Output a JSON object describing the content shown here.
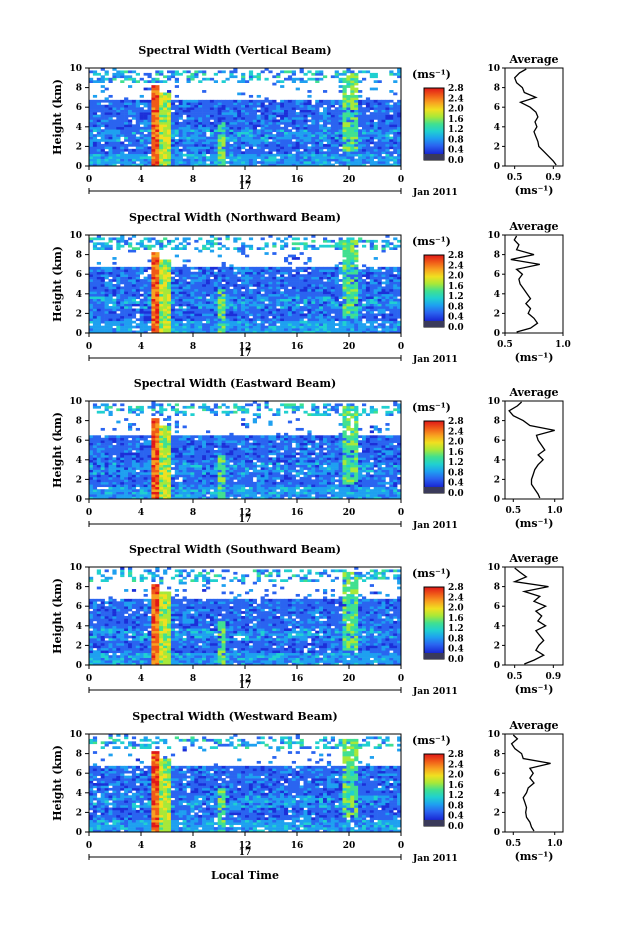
{
  "figure": {
    "time_xlabel": "Local Time",
    "date_label": "Jan 2011",
    "day_label": "17",
    "height_ylabel": "Height (km)",
    "avg_title": "Average",
    "avg_xlabel": "(ms⁻¹)",
    "cbar_unit": "(ms⁻¹)",
    "cbar_ticks": [
      "0.0",
      "0.4",
      "0.8",
      "1.2",
      "1.6",
      "2.0",
      "2.4",
      "2.8"
    ],
    "cbar_colors": [
      "#0a0a70",
      "#1c2fd8",
      "#2a64f0",
      "#1ea0f0",
      "#20d0d0",
      "#40e090",
      "#a8e838",
      "#f0e020",
      "#f8a020",
      "#f05a18",
      "#e01818"
    ]
  },
  "chart_data": [
    {
      "type": "heatmap",
      "title": "Spectral Width (Vertical Beam)",
      "xlabel": "Local Time",
      "ylabel": "Height (km)",
      "xlim": [
        0,
        24
      ],
      "ylim": [
        0,
        10
      ],
      "xticks": [
        "0",
        "4",
        "8",
        "12",
        "16",
        "20",
        "0"
      ],
      "yticks": [
        "0",
        "2",
        "4",
        "6",
        "8",
        "10"
      ],
      "colorbar": {
        "label": "(ms⁻¹)",
        "range": [
          0.0,
          2.8
        ]
      },
      "features": {
        "convective_band_hours": [
          4.8,
          5.5
        ],
        "cloud_top_km": 6.7,
        "upper_layer_km": [
          8.5,
          9.8
        ]
      },
      "average_profile": {
        "title": "Average",
        "xlabel": "(ms⁻¹)",
        "xticks": [
          "0.5",
          "0.9"
        ],
        "xlim": [
          0.4,
          1.0
        ],
        "height": [
          0.1,
          0.5,
          1,
          1.5,
          2,
          2.5,
          3,
          3.5,
          4,
          4.5,
          5,
          5.5,
          6,
          6.5,
          7,
          7.5,
          8,
          8.5,
          9,
          9.5,
          9.9
        ],
        "value": [
          0.93,
          0.9,
          0.85,
          0.8,
          0.75,
          0.74,
          0.72,
          0.7,
          0.73,
          0.71,
          0.74,
          0.72,
          0.66,
          0.56,
          0.72,
          0.6,
          0.58,
          0.52,
          0.5,
          0.55,
          0.62
        ]
      }
    },
    {
      "type": "heatmap",
      "title": "Spectral Width (Northward Beam)",
      "xlabel": "Local Time",
      "ylabel": "Height (km)",
      "xlim": [
        0,
        24
      ],
      "ylim": [
        0,
        10
      ],
      "xticks": [
        "0",
        "4",
        "8",
        "12",
        "16",
        "20",
        "0"
      ],
      "yticks": [
        "0",
        "2",
        "4",
        "6",
        "8",
        "10"
      ],
      "colorbar": {
        "label": "(ms⁻¹)",
        "range": [
          0.0,
          2.8
        ]
      },
      "features": {
        "convective_band_hours": [
          4.8,
          5.5
        ],
        "cloud_top_km": 6.8,
        "upper_layer_km": [
          8.5,
          9.8
        ]
      },
      "average_profile": {
        "title": "Average",
        "xlabel": "(ms⁻¹)",
        "xticks": [
          "0.5",
          "1.0"
        ],
        "xlim": [
          0.5,
          1.0
        ],
        "height": [
          0.1,
          0.5,
          1,
          1.5,
          2,
          2.5,
          3,
          3.5,
          4,
          4.5,
          5,
          5.5,
          6,
          6.5,
          7,
          7.5,
          8,
          8.5,
          9,
          9.5,
          9.9
        ],
        "value": [
          0.6,
          0.72,
          0.78,
          0.75,
          0.7,
          0.72,
          0.68,
          0.72,
          0.69,
          0.66,
          0.63,
          0.62,
          0.65,
          0.6,
          0.8,
          0.55,
          0.75,
          0.6,
          0.62,
          0.58,
          0.6
        ]
      }
    },
    {
      "type": "heatmap",
      "title": "Spectral Width (Eastward Beam)",
      "xlabel": "Local Time",
      "ylabel": "Height (km)",
      "xlim": [
        0,
        24
      ],
      "ylim": [
        0,
        10
      ],
      "xticks": [
        "0",
        "4",
        "8",
        "12",
        "16",
        "20",
        "0"
      ],
      "yticks": [
        "0",
        "2",
        "4",
        "6",
        "8",
        "10"
      ],
      "colorbar": {
        "label": "(ms⁻¹)",
        "range": [
          0.0,
          2.8
        ]
      },
      "features": {
        "convective_band_hours": [
          4.8,
          5.5
        ],
        "cloud_top_km": 6.6,
        "upper_layer_km": [
          8.5,
          9.8
        ]
      },
      "average_profile": {
        "title": "Average",
        "xlabel": "(ms⁻¹)",
        "xticks": [
          "0.5",
          "1.0"
        ],
        "xlim": [
          0.4,
          1.1
        ],
        "height": [
          0.1,
          0.5,
          1,
          1.5,
          2,
          2.5,
          3,
          3.5,
          4,
          4.5,
          5,
          5.5,
          6,
          6.5,
          7,
          7.5,
          8,
          8.5,
          9,
          9.5,
          9.9
        ],
        "value": [
          0.82,
          0.8,
          0.76,
          0.72,
          0.72,
          0.74,
          0.76,
          0.8,
          0.86,
          0.8,
          0.88,
          0.84,
          0.8,
          0.78,
          1.0,
          0.7,
          0.62,
          0.5,
          0.45,
          0.55,
          0.6
        ]
      }
    },
    {
      "type": "heatmap",
      "title": "Spectral Width (Southward Beam)",
      "xlabel": "Local Time",
      "ylabel": "Height (km)",
      "xlim": [
        0,
        24
      ],
      "ylim": [
        0,
        10
      ],
      "xticks": [
        "0",
        "4",
        "8",
        "12",
        "16",
        "20",
        "0"
      ],
      "yticks": [
        "0",
        "2",
        "4",
        "6",
        "8",
        "10"
      ],
      "colorbar": {
        "label": "(ms⁻¹)",
        "range": [
          0.0,
          2.8
        ]
      },
      "features": {
        "convective_band_hours": [
          4.8,
          5.5
        ],
        "cloud_top_km": 6.8,
        "upper_layer_km": [
          8.5,
          9.8
        ]
      },
      "average_profile": {
        "title": "Average",
        "xlabel": "(ms⁻¹)",
        "xticks": [
          "0.5",
          "0.9"
        ],
        "xlim": [
          0.4,
          1.0
        ],
        "height": [
          0.1,
          0.5,
          1,
          1.5,
          2,
          2.5,
          3,
          3.5,
          4,
          4.5,
          5,
          5.5,
          6,
          6.5,
          7,
          7.5,
          8,
          8.5,
          9,
          9.5,
          9.9
        ],
        "value": [
          0.6,
          0.7,
          0.8,
          0.72,
          0.75,
          0.8,
          0.76,
          0.72,
          0.82,
          0.74,
          0.78,
          0.72,
          0.82,
          0.7,
          0.76,
          0.6,
          0.85,
          0.5,
          0.62,
          0.55,
          0.5
        ]
      }
    },
    {
      "type": "heatmap",
      "title": "Spectral Width (Westward Beam)",
      "xlabel": "Local Time",
      "ylabel": "Height (km)",
      "xlim": [
        0,
        24
      ],
      "ylim": [
        0,
        10
      ],
      "xticks": [
        "0",
        "4",
        "8",
        "12",
        "16",
        "20",
        "0"
      ],
      "yticks": [
        "0",
        "2",
        "4",
        "6",
        "8",
        "10"
      ],
      "colorbar": {
        "label": "(ms⁻¹)",
        "range": [
          0.0,
          2.8
        ]
      },
      "features": {
        "convective_band_hours": [
          4.8,
          5.5
        ],
        "cloud_top_km": 6.8,
        "upper_layer_km": [
          8.5,
          9.8
        ]
      },
      "average_profile": {
        "title": "Average",
        "xlabel": "(ms⁻¹)",
        "xticks": [
          "0.5",
          "1.0"
        ],
        "xlim": [
          0.4,
          1.1
        ],
        "height": [
          0.1,
          0.5,
          1,
          1.5,
          2,
          2.5,
          3,
          3.5,
          4,
          4.5,
          5,
          5.5,
          6,
          6.5,
          7,
          7.5,
          8,
          8.5,
          9,
          9.5,
          9.9
        ],
        "value": [
          0.75,
          0.72,
          0.7,
          0.66,
          0.65,
          0.66,
          0.64,
          0.62,
          0.66,
          0.68,
          0.75,
          0.7,
          0.74,
          0.7,
          0.95,
          0.62,
          0.6,
          0.52,
          0.48,
          0.55,
          0.5
        ]
      }
    }
  ]
}
